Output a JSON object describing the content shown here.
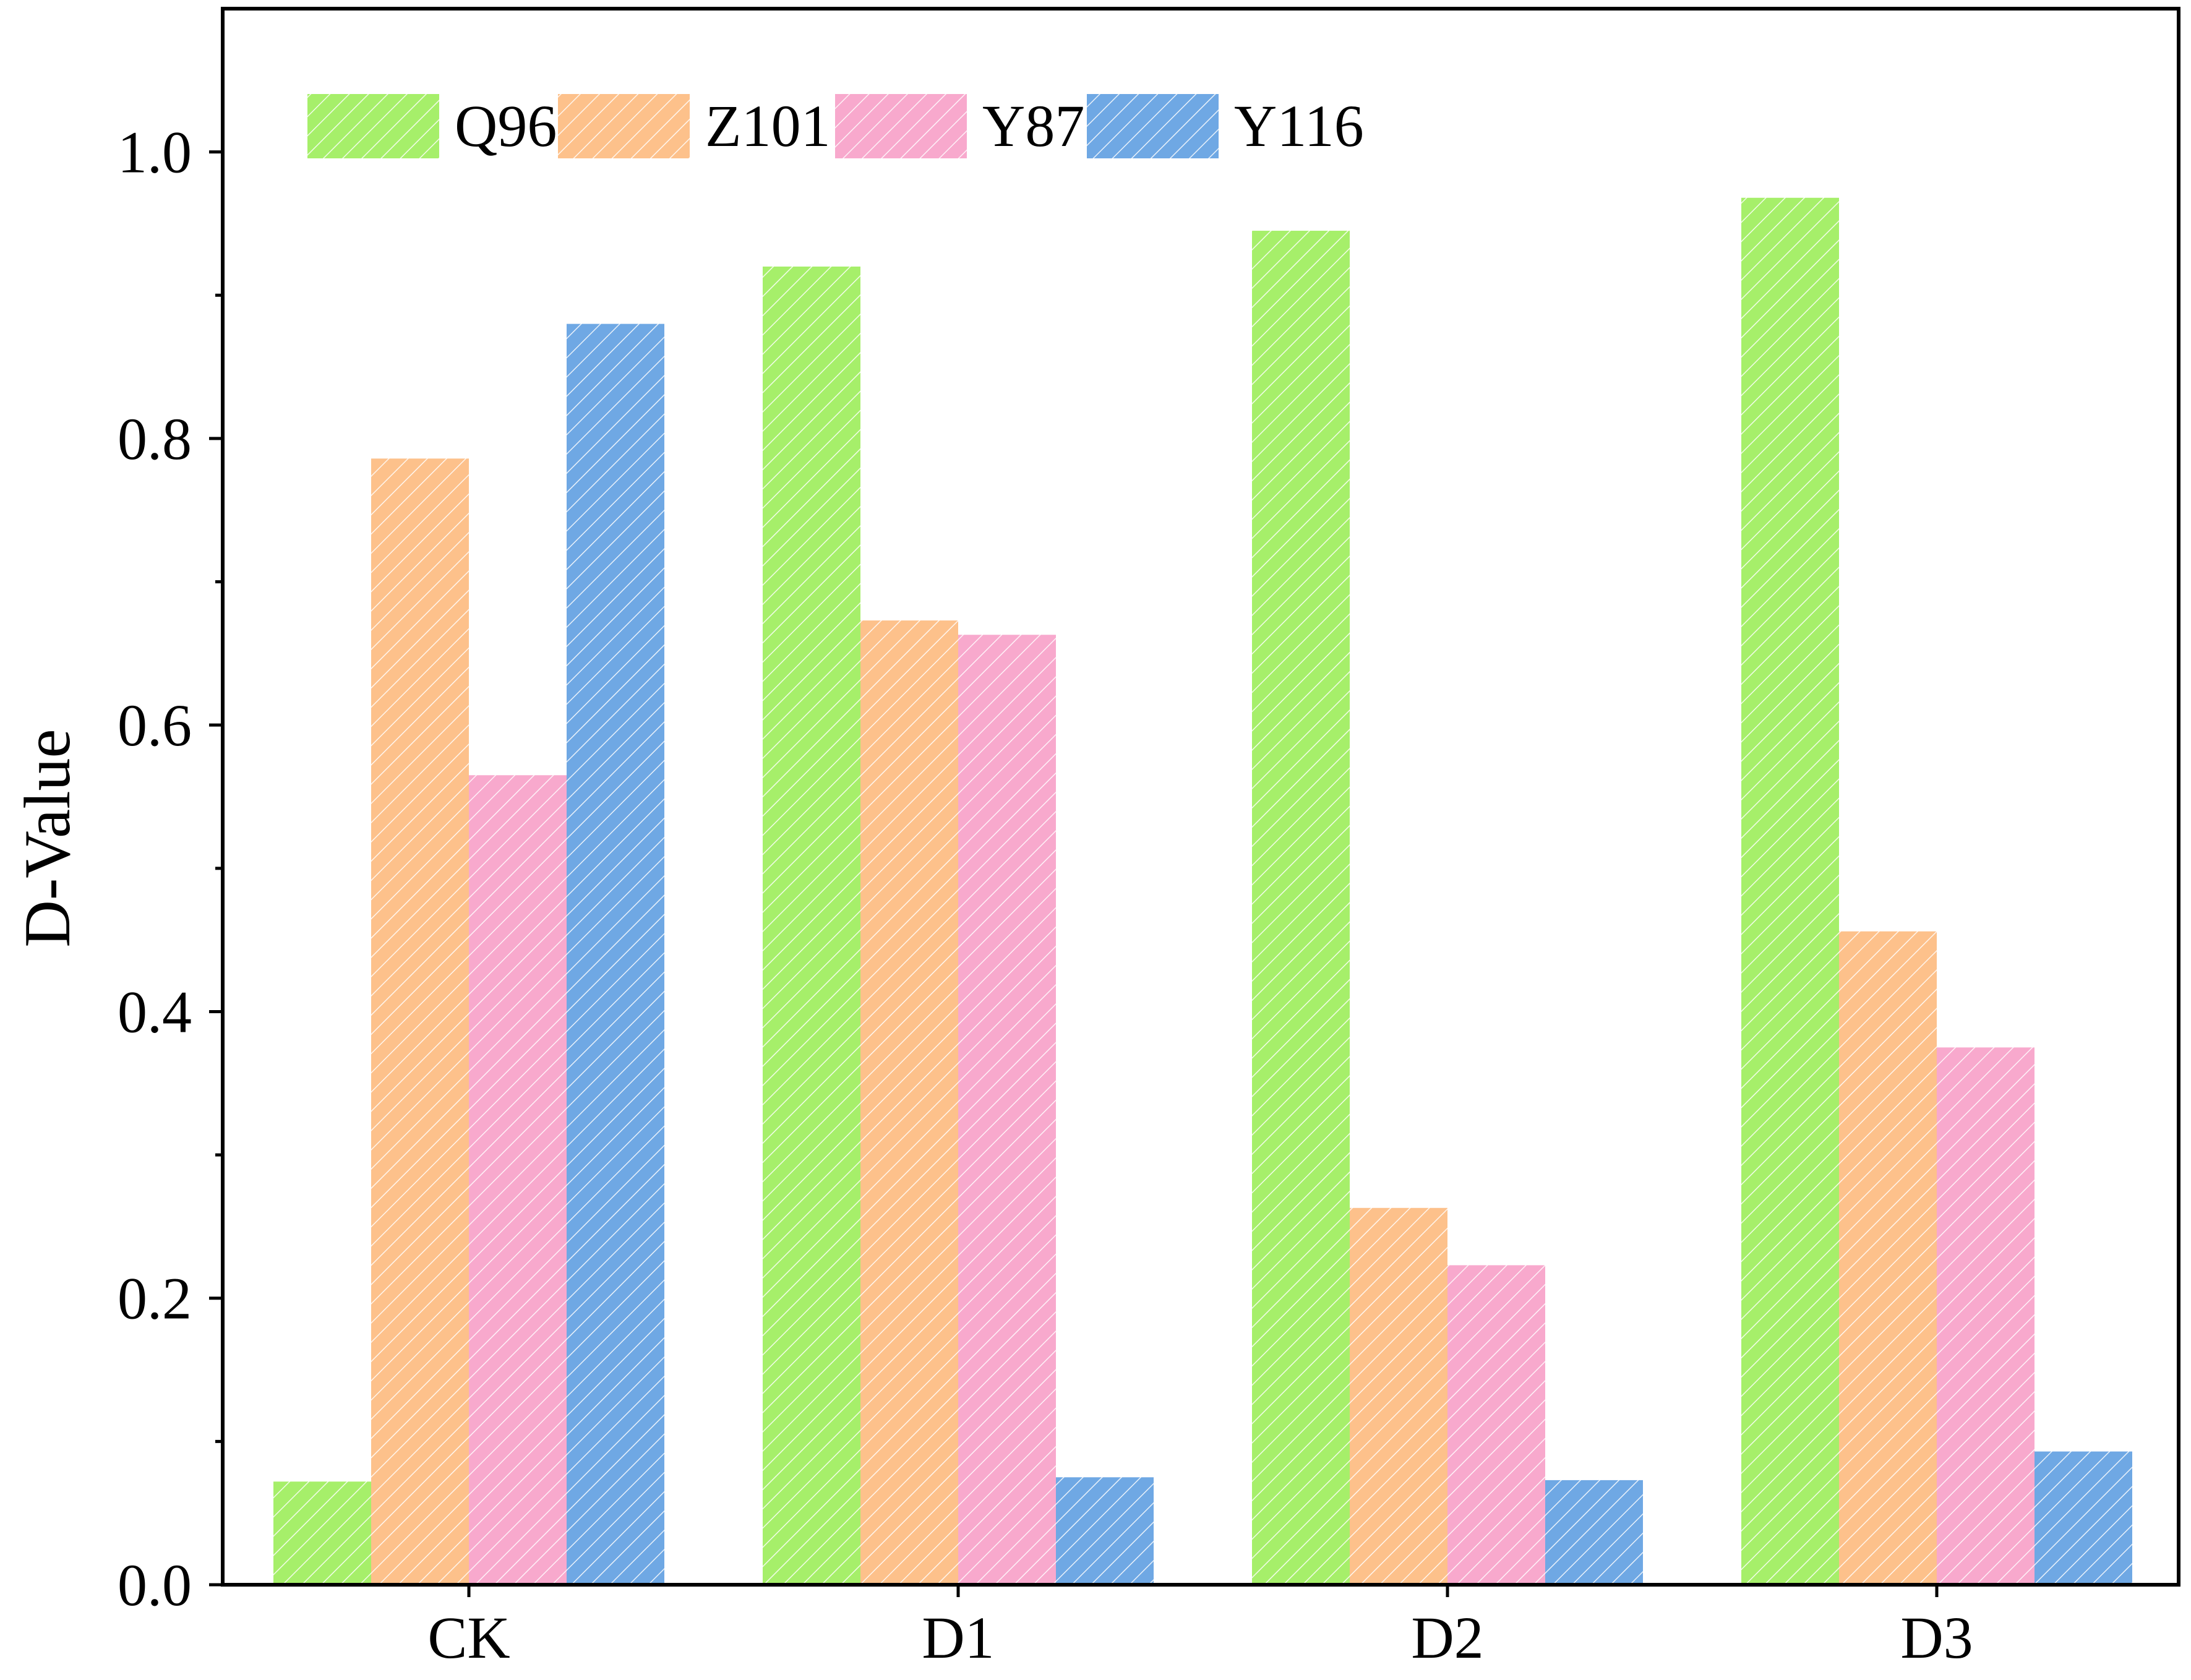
{
  "chart_data": {
    "type": "bar",
    "title": "",
    "xlabel": "",
    "ylabel": "D-Value",
    "categories": [
      "CK",
      "D1",
      "D2",
      "D3"
    ],
    "ylim": [
      0,
      1.1
    ],
    "yticks": [
      "0.0",
      "0.2",
      "0.4",
      "0.6",
      "0.8",
      "1.0"
    ],
    "ytick_values": [
      0,
      0.2,
      0.4,
      0.6,
      0.8,
      1.0
    ],
    "minor_tick_step": 0.1,
    "grid": false,
    "legend_position": "top-left",
    "bar_pattern": "diagonal hatch",
    "series": [
      {
        "name": "Q96",
        "color": "#a6ef6a",
        "values": [
          0.072,
          0.92,
          0.945,
          0.968
        ]
      },
      {
        "name": "Z101",
        "color": "#fdc18b",
        "values": [
          0.786,
          0.673,
          0.263,
          0.456
        ]
      },
      {
        "name": "Y87",
        "color": "#f8a9cd",
        "values": [
          0.565,
          0.663,
          0.223,
          0.375
        ]
      },
      {
        "name": "Y116",
        "color": "#6fa8e4",
        "values": [
          0.88,
          0.075,
          0.073,
          0.093
        ]
      }
    ]
  }
}
